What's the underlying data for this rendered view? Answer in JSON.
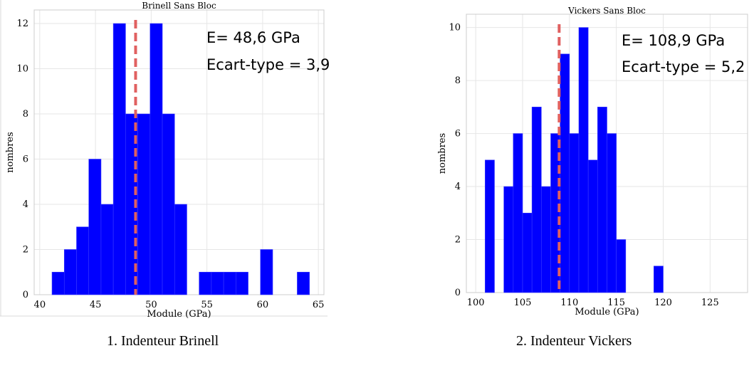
{
  "colors": {
    "bars": "#0000ff",
    "mean_line": "#e06060",
    "grid": "#e6e6e6",
    "axis": "#cccccc",
    "text": "#000000"
  },
  "chart_data": [
    {
      "type": "bar",
      "title": "Brinell Sans Bloc",
      "xlabel": "Module (GPa)",
      "ylabel": "nombres",
      "xlim": [
        39.5,
        65.5
      ],
      "ylim": [
        0,
        12.6
      ],
      "xticks": [
        40,
        45,
        50,
        55,
        60,
        65
      ],
      "yticks": [
        0,
        2,
        4,
        6,
        8,
        10,
        12
      ],
      "bin_width": 1.1,
      "bins": [
        {
          "x": 41.1,
          "count": 1
        },
        {
          "x": 42.2,
          "count": 2
        },
        {
          "x": 43.3,
          "count": 3
        },
        {
          "x": 44.4,
          "count": 6
        },
        {
          "x": 45.5,
          "count": 4
        },
        {
          "x": 46.6,
          "count": 12
        },
        {
          "x": 47.7,
          "count": 8
        },
        {
          "x": 48.8,
          "count": 8
        },
        {
          "x": 49.9,
          "count": 12
        },
        {
          "x": 51.0,
          "count": 8
        },
        {
          "x": 52.1,
          "count": 4
        },
        {
          "x": 54.3,
          "count": 1
        },
        {
          "x": 55.4,
          "count": 1
        },
        {
          "x": 56.5,
          "count": 1
        },
        {
          "x": 57.6,
          "count": 1
        },
        {
          "x": 59.8,
          "count": 2
        },
        {
          "x": 63.1,
          "count": 1
        }
      ],
      "mean": 48.6,
      "annotations": [
        "E= 48,6 GPa",
        "Ecart-type = 3,9"
      ],
      "grid": true
    },
    {
      "type": "bar",
      "title": "Vickers Sans Bloc",
      "xlabel": "Module (GPa)",
      "ylabel": "nombres",
      "xlim": [
        99,
        129
      ],
      "ylim": [
        0,
        10.5
      ],
      "xticks": [
        100,
        105,
        110,
        115,
        120,
        125
      ],
      "yticks": [
        0,
        2,
        4,
        6,
        8,
        10
      ],
      "bin_width": 1.0,
      "bins": [
        {
          "x": 101,
          "count": 5
        },
        {
          "x": 103,
          "count": 4
        },
        {
          "x": 104,
          "count": 6
        },
        {
          "x": 105,
          "count": 3
        },
        {
          "x": 106,
          "count": 7
        },
        {
          "x": 107,
          "count": 4
        },
        {
          "x": 108,
          "count": 6
        },
        {
          "x": 109,
          "count": 9
        },
        {
          "x": 110,
          "count": 6
        },
        {
          "x": 111,
          "count": 10
        },
        {
          "x": 112,
          "count": 5
        },
        {
          "x": 113,
          "count": 7
        },
        {
          "x": 114,
          "count": 6
        },
        {
          "x": 115,
          "count": 2
        },
        {
          "x": 119,
          "count": 1
        }
      ],
      "mean": 108.9,
      "annotations": [
        "E= 108,9 GPa",
        "Ecart-type = 5,2"
      ],
      "grid": true
    }
  ],
  "captions": [
    "1.    Indenteur Brinell",
    "2.    Indenteur Vickers"
  ]
}
